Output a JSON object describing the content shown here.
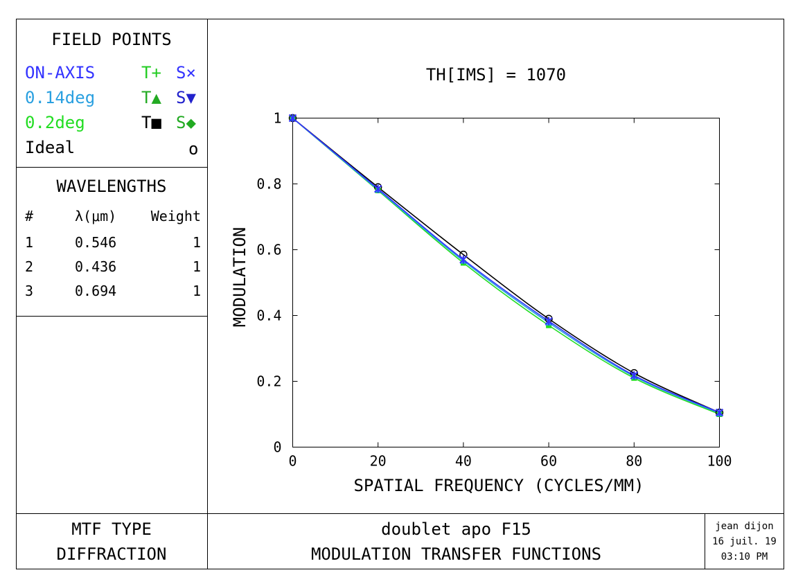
{
  "field_points": {
    "heading": "FIELD POINTS",
    "rows": [
      {
        "name": "ON-AXIS",
        "t": "T+",
        "s": "S×",
        "color": "#3333ff",
        "t_color": "#22cc22",
        "s_color": "#3333ff"
      },
      {
        "name": "0.14deg",
        "t": "T▲",
        "s": "S▼",
        "color": "#2aa0e0",
        "t_color": "#22aa22",
        "s_color": "#2222cc"
      },
      {
        "name": "0.2deg",
        "t": "T■",
        "s": "S◆",
        "color": "#22dd22",
        "t_color": "#000000",
        "s_color": "#22aa22"
      }
    ],
    "ideal": {
      "name": "Ideal",
      "symbol": "o"
    }
  },
  "wavelengths": {
    "heading": "WAVELENGTHS",
    "col_num": "#",
    "col_lambda": "λ(μm)",
    "col_weight": "Weight",
    "rows": [
      {
        "n": "1",
        "lambda": "0.546",
        "weight": "1"
      },
      {
        "n": "2",
        "lambda": "0.436",
        "weight": "1"
      },
      {
        "n": "3",
        "lambda": "0.694",
        "weight": "1"
      }
    ]
  },
  "footer": {
    "mtf_type_label": "MTF TYPE",
    "mtf_type_value": "DIFFRACTION",
    "system_name": "doublet apo F15",
    "plot_title": "MODULATION TRANSFER FUNCTIONS",
    "user": "jean dijon",
    "date": "16 juil. 19",
    "time": "03:10 PM"
  },
  "chart_data": {
    "type": "line",
    "title": "TH[IMS] = 1070",
    "xlabel": "SPATIAL FREQUENCY (CYCLES/MM)",
    "ylabel": "MODULATION",
    "xlim": [
      0,
      100
    ],
    "ylim": [
      0,
      1
    ],
    "x_ticks": [
      "0",
      "20",
      "40",
      "60",
      "80",
      "100"
    ],
    "y_ticks": [
      "0",
      "0.2",
      "0.4",
      "0.6",
      "0.8",
      "1"
    ],
    "x": [
      0,
      20,
      40,
      60,
      80,
      100
    ],
    "series": [
      {
        "name": "Ideal",
        "color": "#000000",
        "marker": "circle",
        "values": [
          1.0,
          0.79,
          0.585,
          0.39,
          0.225,
          0.105
        ]
      },
      {
        "name": "0.2deg",
        "color": "#22dd22",
        "marker": "square",
        "values": [
          1.0,
          0.78,
          0.56,
          0.37,
          0.21,
          0.1
        ]
      },
      {
        "name": "0.14deg",
        "color": "#2aa0e0",
        "marker": "triangle",
        "values": [
          1.0,
          0.782,
          0.566,
          0.378,
          0.215,
          0.103
        ]
      },
      {
        "name": "ON-AXIS",
        "color": "#3333ff",
        "marker": "x",
        "values": [
          1.0,
          0.785,
          0.57,
          0.383,
          0.218,
          0.105
        ]
      }
    ]
  }
}
